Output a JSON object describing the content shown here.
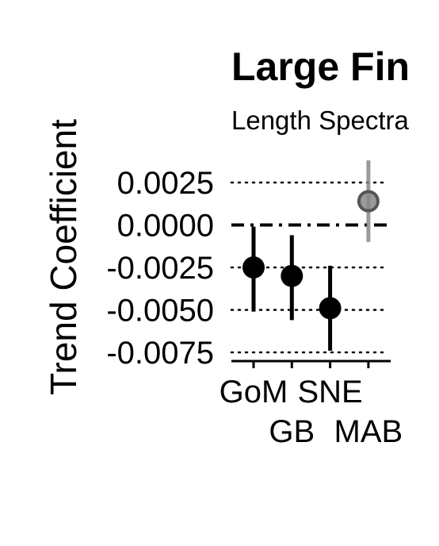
{
  "chart_data": {
    "type": "scatter",
    "title": "Large Fin",
    "subtitle": "Length Spectra",
    "xlabel": "",
    "ylabel": "Trend Coefficient",
    "categories": [
      "GoM",
      "GB",
      "SNE",
      "MAB"
    ],
    "points": [
      {
        "category": "GoM",
        "estimate": -0.0025,
        "lower": -0.0051,
        "upper": -0.0001,
        "significant": true
      },
      {
        "category": "GB",
        "estimate": -0.003,
        "lower": -0.0056,
        "upper": -0.0006,
        "significant": true
      },
      {
        "category": "SNE",
        "estimate": -0.0049,
        "lower": -0.0074,
        "upper": -0.0024,
        "significant": true
      },
      {
        "category": "MAB",
        "estimate": 0.0014,
        "lower": -0.001,
        "upper": 0.0038,
        "significant": false
      }
    ],
    "ylim": [
      -0.0078,
      0.0038
    ],
    "yticks": [
      "0.0025",
      "0.0000",
      "-0.0025",
      "-0.0050",
      "-0.0075"
    ],
    "ytick_values": [
      0.0025,
      0.0,
      -0.0025,
      -0.005,
      -0.0075
    ],
    "reference_line": 0,
    "grid": "horizontal dotted",
    "colors": {
      "significant": "#000000",
      "not_significant": "#888888"
    }
  }
}
